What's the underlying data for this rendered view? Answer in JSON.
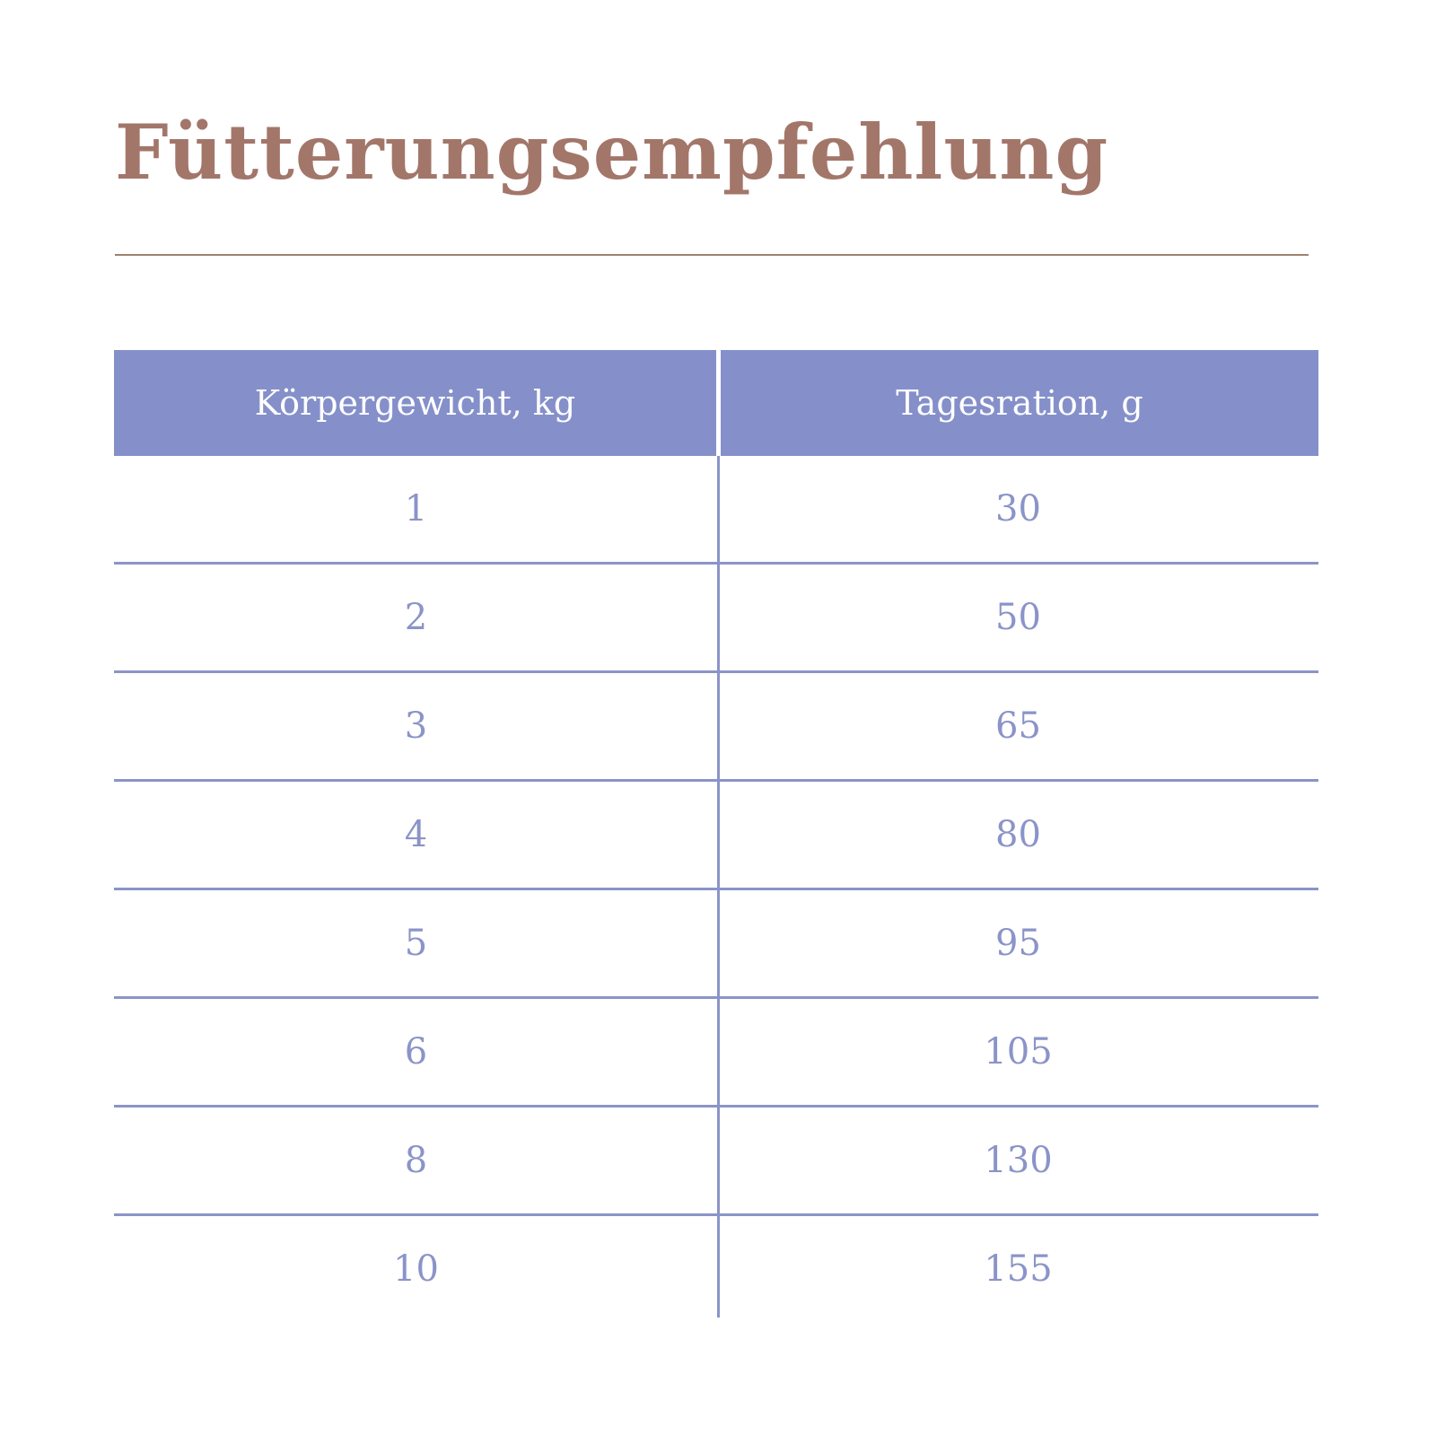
{
  "page": {
    "title": "Fütterungsempfehlung"
  },
  "colors": {
    "title": "#a3766a",
    "divider_rule": "#9d8171",
    "table_header_background": "#8590ca",
    "table_header_text": "#ffffff",
    "table_cell_text": "#8b94c8",
    "table_grid_line": "#8b94c8",
    "background": "#ffffff"
  },
  "table": {
    "columns": [
      {
        "key": "weight",
        "label": "Körpergewicht, kg"
      },
      {
        "key": "ration",
        "label": "Tagesration, g"
      }
    ],
    "rows": [
      {
        "weight": "1",
        "ration": "30"
      },
      {
        "weight": "2",
        "ration": "50"
      },
      {
        "weight": "3",
        "ration": "65"
      },
      {
        "weight": "4",
        "ration": "80"
      },
      {
        "weight": "5",
        "ration": "95"
      },
      {
        "weight": "6",
        "ration": "105"
      },
      {
        "weight": "8",
        "ration": "130"
      },
      {
        "weight": "10",
        "ration": "155"
      }
    ]
  }
}
